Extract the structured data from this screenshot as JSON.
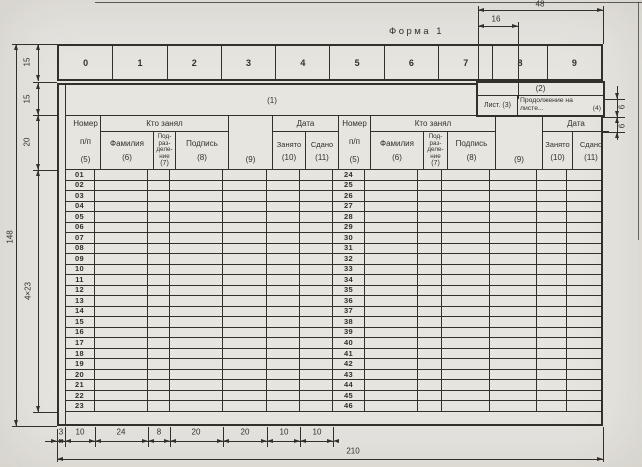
{
  "form_label": "Форма 1",
  "digit_strip": [
    "0",
    "1",
    "2",
    "3",
    "4",
    "5",
    "6",
    "7",
    "8",
    "9"
  ],
  "title_cell": "(1)",
  "continuation_block": {
    "field2": "(2)",
    "sheet": "Лист. (3)",
    "cont_line1": "Продолжение на",
    "cont_line2": "листе...",
    "field4": "(4)"
  },
  "table_header": {
    "number_l1": "Номер",
    "number_l2": "п/п",
    "number_ref": "(5)",
    "who_took": "Кто занял",
    "surname": "Фамилия",
    "surname_ref": "(6)",
    "division_lines": [
      "Под-",
      "раз-",
      "деле-",
      "ние"
    ],
    "division_ref": "(7)",
    "signature": "Подпись",
    "signature_ref": "(8)",
    "col9_ref": "(9)",
    "date": "Дата",
    "taken": "Занято",
    "taken_ref": "(10)",
    "returned": "Сдано",
    "returned_ref": "(11)"
  },
  "rows_left": [
    "01",
    "02",
    "03",
    "04",
    "05",
    "06",
    "07",
    "08",
    "09",
    "10",
    "11",
    "12",
    "13",
    "14",
    "15",
    "16",
    "17",
    "18",
    "19",
    "20",
    "21",
    "22",
    "23"
  ],
  "rows_right": [
    "24",
    "25",
    "26",
    "27",
    "28",
    "29",
    "30",
    "31",
    "32",
    "33",
    "34",
    "35",
    "36",
    "37",
    "38",
    "39",
    "40",
    "41",
    "42",
    "43",
    "44",
    "45",
    "46"
  ],
  "dimensions": {
    "width48": "48",
    "width16": "16",
    "height148": "148",
    "height15_top": "15",
    "height15_title": "15",
    "height20": "20",
    "rows_height": "4×23",
    "height6_a": "6",
    "height6_b": "6",
    "bottom_widths": [
      "3",
      "10",
      "24",
      "8",
      "20",
      "20",
      "10",
      "10"
    ],
    "total_width": "210"
  },
  "colors": {
    "paper": "#e7e5e0",
    "ink": "#33302b"
  }
}
